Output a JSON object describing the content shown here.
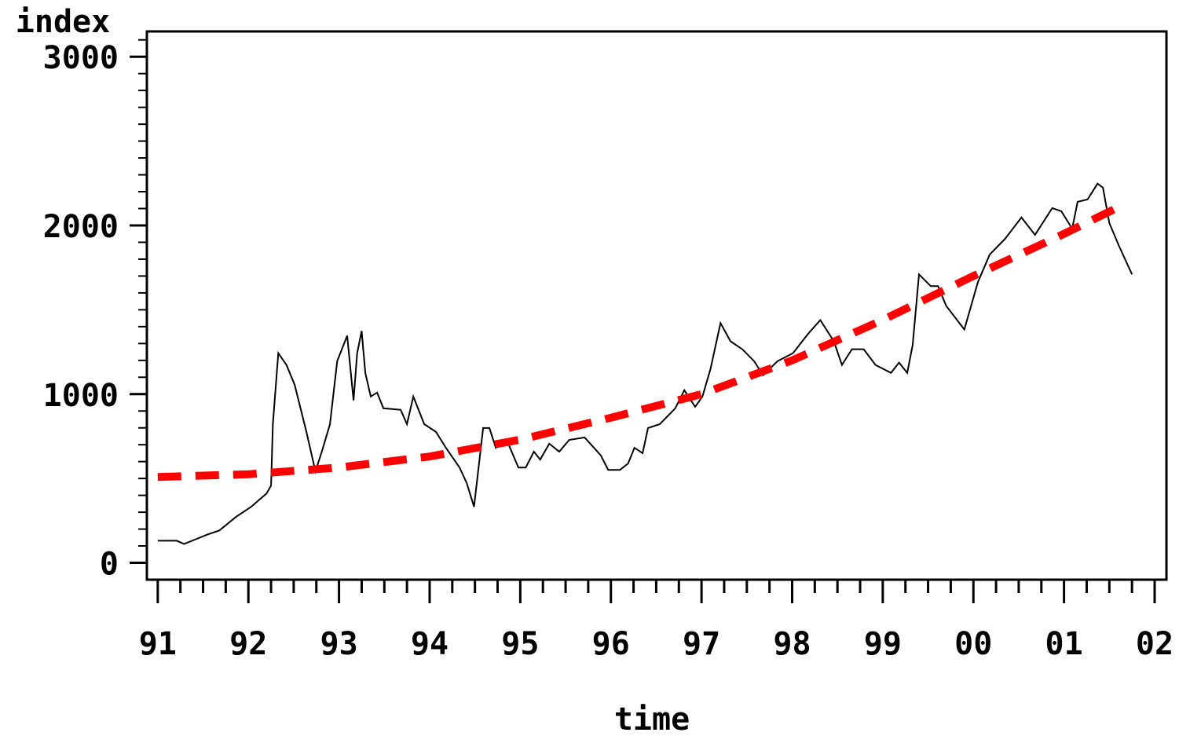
{
  "chart_data": {
    "type": "line",
    "ylabel": "index",
    "xlabel": "time",
    "xlim": [
      1990.88,
      2002.13
    ],
    "ylim": [
      -100,
      3150
    ],
    "xticks": [
      {
        "value": 1991,
        "label": "91"
      },
      {
        "value": 1992,
        "label": "92"
      },
      {
        "value": 1993,
        "label": "93"
      },
      {
        "value": 1994,
        "label": "94"
      },
      {
        "value": 1995,
        "label": "95"
      },
      {
        "value": 1996,
        "label": "96"
      },
      {
        "value": 1997,
        "label": "97"
      },
      {
        "value": 1998,
        "label": "98"
      },
      {
        "value": 1999,
        "label": "99"
      },
      {
        "value": 2000,
        "label": "00"
      },
      {
        "value": 2001,
        "label": "01"
      },
      {
        "value": 2002,
        "label": "02"
      }
    ],
    "x_minor_ticks": [
      1991.25,
      1991.5,
      1991.75,
      1992.25,
      1992.5,
      1992.75,
      1993.25,
      1993.5,
      1993.75,
      1994.25,
      1994.5,
      1994.75,
      1995.25,
      1995.5,
      1995.75,
      1996.25,
      1996.5,
      1996.75,
      1997.25,
      1997.5,
      1997.75,
      1998.25,
      1998.5,
      1998.75,
      1999.25,
      1999.5,
      1999.75,
      2000.25,
      2000.5,
      2000.75,
      2001.25,
      2001.5,
      2001.75
    ],
    "yticks": [
      0,
      1000,
      2000,
      3000
    ],
    "y_minor_ticks": [
      100,
      200,
      300,
      400,
      500,
      600,
      700,
      800,
      900,
      1100,
      1200,
      1300,
      1400,
      1500,
      1600,
      1700,
      1800,
      1900,
      2100,
      2200,
      2300,
      2400,
      2500,
      2600,
      2700,
      2800,
      2900,
      3100
    ],
    "series": [
      {
        "color": "#000000",
        "dashed": false,
        "x": [
          1991.0,
          1991.21,
          1991.29,
          1991.42,
          1991.55,
          1991.68,
          1991.86,
          1992.03,
          1992.2,
          1992.25,
          1992.27,
          1992.33,
          1992.42,
          1992.51,
          1992.64,
          1992.74,
          1992.81,
          1992.9,
          1992.98,
          1993.09,
          1993.16,
          1993.2,
          1993.25,
          1993.29,
          1993.35,
          1993.42,
          1993.49,
          1993.68,
          1993.75,
          1993.82,
          1993.94,
          1994.07,
          1994.18,
          1994.33,
          1994.41,
          1994.49,
          1994.59,
          1994.66,
          1994.73,
          1994.85,
          1994.98,
          1995.06,
          1995.15,
          1995.22,
          1995.32,
          1995.43,
          1995.54,
          1995.71,
          1995.89,
          1995.97,
          1996.1,
          1996.19,
          1996.26,
          1996.35,
          1996.41,
          1996.54,
          1996.71,
          1996.81,
          1996.93,
          1997.01,
          1997.1,
          1997.21,
          1997.32,
          1997.45,
          1997.58,
          1997.68,
          1997.84,
          1998.01,
          1998.18,
          1998.31,
          1998.46,
          1998.55,
          1998.66,
          1998.79,
          1998.92,
          1999.09,
          1999.18,
          1999.27,
          1999.33,
          1999.4,
          1999.53,
          1999.61,
          1999.7,
          1999.9,
          2000.05,
          2000.18,
          2000.35,
          2000.53,
          2000.68,
          2000.87,
          2000.97,
          2001.09,
          2001.15,
          2001.26,
          2001.37,
          2001.43,
          2001.5,
          2001.61,
          2001.75
        ],
        "values": [
          131,
          131,
          112,
          140,
          168,
          192,
          271,
          332,
          411,
          458,
          822,
          1243,
          1173,
          1056,
          776,
          542,
          659,
          822,
          1196,
          1346,
          963,
          1243,
          1374,
          1126,
          986,
          1009,
          916,
          907,
          822,
          986,
          822,
          776,
          682,
          565,
          472,
          332,
          799,
          799,
          682,
          729,
          565,
          565,
          659,
          612,
          706,
          659,
          729,
          743,
          636,
          551,
          551,
          589,
          682,
          650,
          799,
          822,
          916,
          1023,
          925,
          986,
          1150,
          1421,
          1313,
          1266,
          1196,
          1112,
          1196,
          1243,
          1360,
          1439,
          1313,
          1173,
          1266,
          1266,
          1173,
          1126,
          1187,
          1126,
          1290,
          1710,
          1640,
          1640,
          1523,
          1383,
          1664,
          1827,
          1921,
          2047,
          1944,
          2103,
          2084,
          1981,
          2140,
          2154,
          2248,
          2224,
          2014,
          1874,
          1710
        ]
      },
      {
        "color": "#ff0000",
        "dashed": true,
        "x": [
          1991.0,
          1992.0,
          1993.0,
          1994.0,
          1995.0,
          1996.0,
          1997.0,
          1998.0,
          1999.0,
          2000.0,
          2001.0,
          2001.65
        ],
        "values": [
          509,
          525,
          565,
          630,
          730,
          860,
          1000,
          1200,
          1440,
          1700,
          1950,
          2121
        ]
      }
    ]
  }
}
